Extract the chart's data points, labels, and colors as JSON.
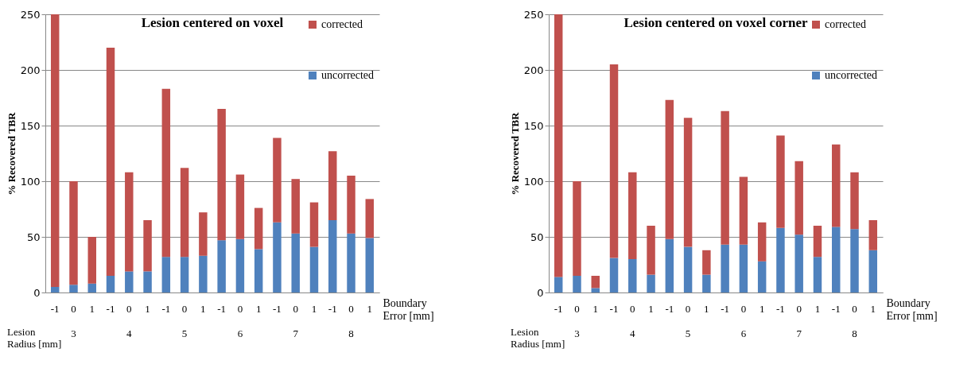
{
  "chart_data": [
    {
      "type": "bar",
      "stacked": true,
      "title": "Lesion centered on voxel",
      "ylabel": "% Recovered TBR",
      "xlabel": "Boundary Error [mm]",
      "categories": [
        "-1",
        "0",
        "1",
        "-1",
        "0",
        "1",
        "-1",
        "0",
        "1",
        "-1",
        "0",
        "1",
        "-1",
        "0",
        "1",
        "-1",
        "0",
        "1"
      ],
      "series": [
        {
          "name": "uncorrected",
          "color": "#4f81bd",
          "values": [
            5,
            7,
            8,
            15,
            19,
            19,
            32,
            32,
            33,
            47,
            48,
            39,
            63,
            53,
            41,
            65,
            53,
            49
          ]
        },
        {
          "name": "corrected",
          "color": "#c0504d",
          "values": [
            245,
            93,
            42,
            205,
            89,
            46,
            151,
            80,
            39,
            118,
            58,
            37,
            76,
            49,
            40,
            62,
            52,
            35
          ]
        }
      ],
      "ylim": [
        0,
        250
      ],
      "yticks": [
        0,
        50,
        100,
        150,
        200,
        250
      ],
      "grid": "y",
      "legend": "top right",
      "annotations": [
        "Lesion Radius [mm]",
        "3",
        "4",
        "5",
        "6",
        "7",
        "8"
      ]
    },
    {
      "type": "bar",
      "stacked": true,
      "title": "Lesion centered on voxel corner",
      "ylabel": "% Recovered TBR",
      "xlabel": "Boundary Error [mm]",
      "categories": [
        "-1",
        "0",
        "1",
        "-1",
        "0",
        "1",
        "-1",
        "0",
        "1",
        "-1",
        "0",
        "1",
        "-1",
        "0",
        "1",
        "-1",
        "0",
        "1"
      ],
      "series": [
        {
          "name": "uncorrected",
          "color": "#4f81bd",
          "values": [
            14,
            15,
            4,
            31,
            30,
            16,
            48,
            41,
            16,
            43,
            43,
            28,
            58,
            52,
            32,
            59,
            57,
            38
          ]
        },
        {
          "name": "corrected",
          "color": "#c0504d",
          "values": [
            236,
            85,
            11,
            174,
            78,
            44,
            125,
            116,
            22,
            120,
            61,
            35,
            83,
            66,
            28,
            74,
            51,
            27
          ]
        }
      ],
      "ylim": [
        0,
        250
      ],
      "yticks": [
        0,
        50,
        100,
        150,
        200,
        250
      ],
      "grid": "y",
      "legend": "top right",
      "annotations": [
        "Lesion Radius [mm]",
        "3",
        "4",
        "5",
        "6",
        "7",
        "8"
      ]
    }
  ]
}
